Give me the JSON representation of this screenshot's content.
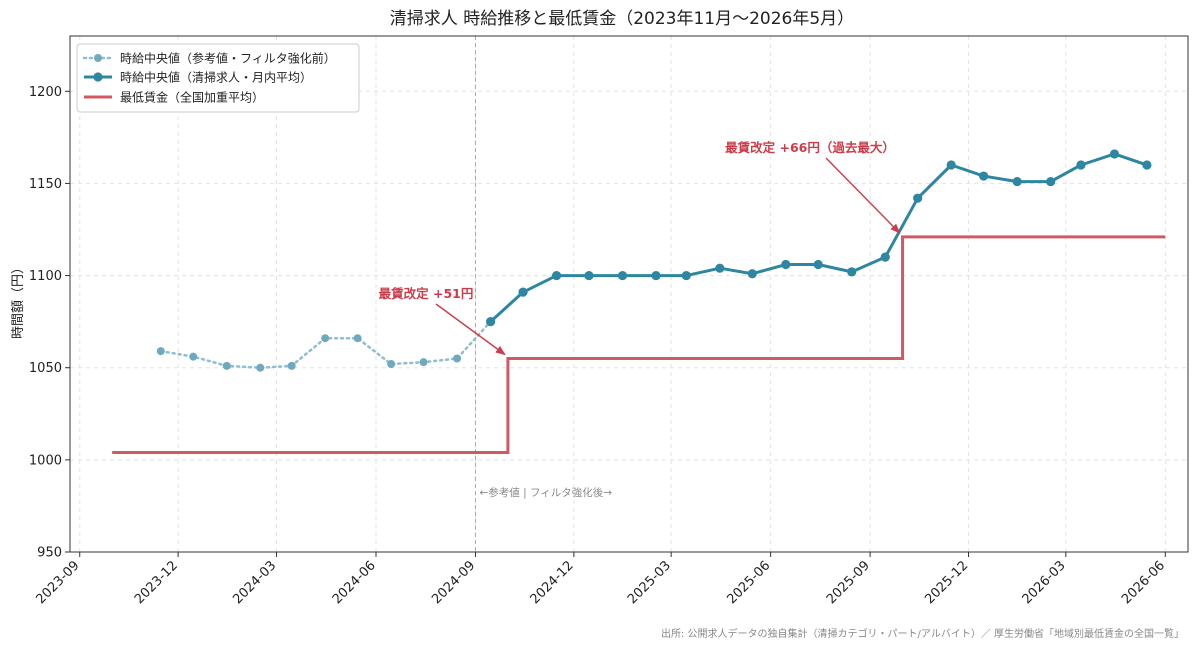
{
  "chart_data": {
    "type": "line",
    "title": "清掃求人 時給推移と最低賃金（2023年11月〜2026年5月）",
    "xlabel": "",
    "ylabel": "時間額（円）",
    "ylim": [
      950,
      1230
    ],
    "xlim": [
      "2023-08-23",
      "2026-06-22"
    ],
    "yticks": [
      950,
      1000,
      1050,
      1100,
      1150,
      1200
    ],
    "xticks": [
      "2023-09",
      "2023-12",
      "2024-03",
      "2024-06",
      "2024-09",
      "2024-12",
      "2025-03",
      "2025-06",
      "2025-09",
      "2025-12",
      "2026-03",
      "2026-06"
    ],
    "grid": true,
    "legend_position": "top-left",
    "series": [
      {
        "name": "時給中央値（参考値・フィルタ強化前）",
        "style": "dotted",
        "color": "#6fa9bd",
        "x": [
          "2023-11",
          "2023-12",
          "2024-01",
          "2024-02",
          "2024-03",
          "2024-04",
          "2024-05",
          "2024-06",
          "2024-07",
          "2024-08",
          "2024-09"
        ],
        "values": [
          1059,
          1056,
          1051,
          1050,
          1051,
          1066,
          1066,
          1052,
          1053,
          1055,
          1075
        ]
      },
      {
        "name": "時給中央値（清掃求人・月内平均）",
        "style": "solid-markers",
        "color": "#2e86a0",
        "x": [
          "2024-09",
          "2024-10",
          "2024-11",
          "2024-12",
          "2025-01",
          "2025-02",
          "2025-03",
          "2025-04",
          "2025-05",
          "2025-06",
          "2025-07",
          "2025-08",
          "2025-09",
          "2025-10",
          "2025-11",
          "2025-12",
          "2026-01",
          "2026-02",
          "2026-03",
          "2026-04",
          "2026-05"
        ],
        "values": [
          1075,
          1091,
          1100,
          1100,
          1100,
          1100,
          1100,
          1104,
          1101,
          1106,
          1106,
          1102,
          1110,
          1142,
          1160,
          1154,
          1151,
          1151,
          1160,
          1166,
          1160
        ]
      },
      {
        "name": "最低賃金（全国加重平均）",
        "style": "step",
        "color": "#d05a63",
        "x": [
          "2023-10-01",
          "2024-10-01",
          "2025-10-01",
          "2026-06-01"
        ],
        "values": [
          1004,
          1055,
          1121,
          1121
        ]
      }
    ],
    "annotations": [
      {
        "text": "最賃改定 +51円",
        "color": "#cc3d4b",
        "target_x": "2024-10-01",
        "target_y": 1055
      },
      {
        "text": "最賃改定 +66円（過去最大）",
        "color": "#cc3d4b",
        "target_x": "2025-10-01",
        "target_y": 1121
      },
      {
        "text": "←参考値 | フィルタ強化後→",
        "color": "#8a8a8a",
        "line_x": "2024-09-01"
      }
    ],
    "source": "出所: 公開求人データの独自集計（清掃カテゴリ・パート/アルバイト）／ 厚生労働省「地域別最低賃金の全国一覧」"
  }
}
